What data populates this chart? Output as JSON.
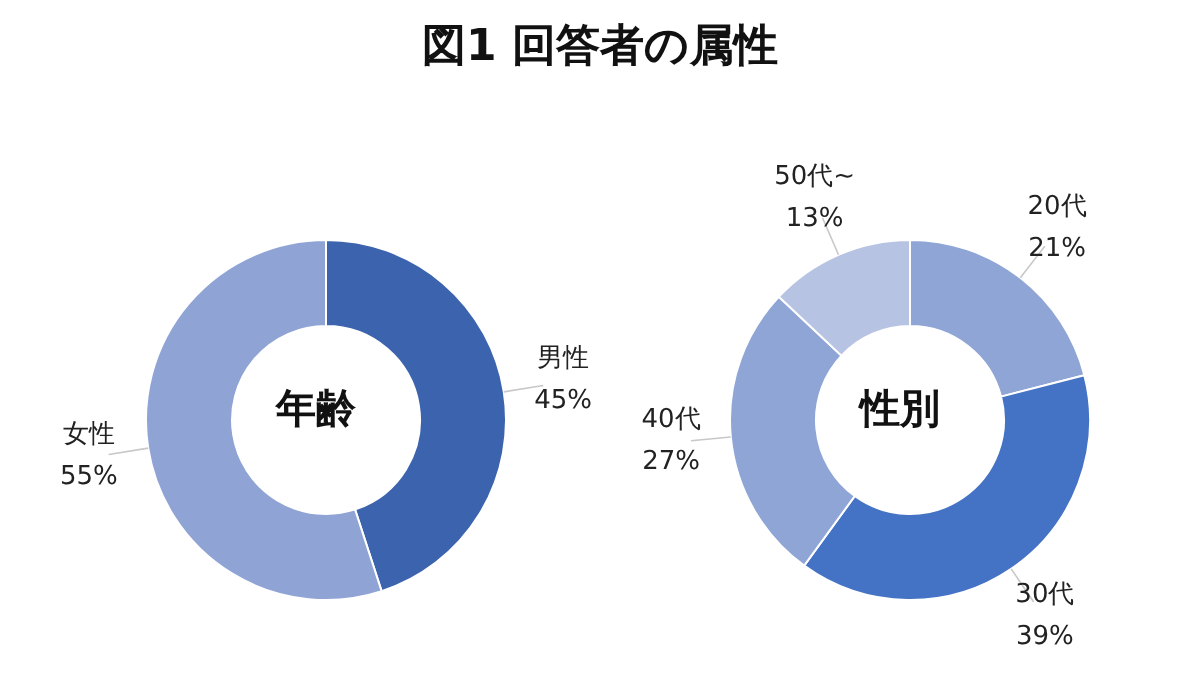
{
  "chart_data": [
    {
      "type": "donut",
      "title": "図1 回答者の属性",
      "categories": [
        "男性",
        "女性"
      ],
      "values": [
        45,
        55
      ],
      "colors": [
        "#3c63ad",
        "#8fa3d5"
      ],
      "annotations": [
        "年齢"
      ],
      "value_labels": [
        "45%",
        "55%"
      ],
      "legend": false
    },
    {
      "type": "donut",
      "categories": [
        "20代",
        "30代",
        "40代",
        "50代~"
      ],
      "values": [
        21,
        39,
        27,
        13
      ],
      "colors": [
        "#8fa5d6",
        "#4472c4",
        "#8fa5d6",
        "#b7c3e3"
      ],
      "annotations": [
        "性別"
      ],
      "value_labels": [
        "21%",
        "39%",
        "27%",
        "13%"
      ],
      "legend": false
    }
  ]
}
